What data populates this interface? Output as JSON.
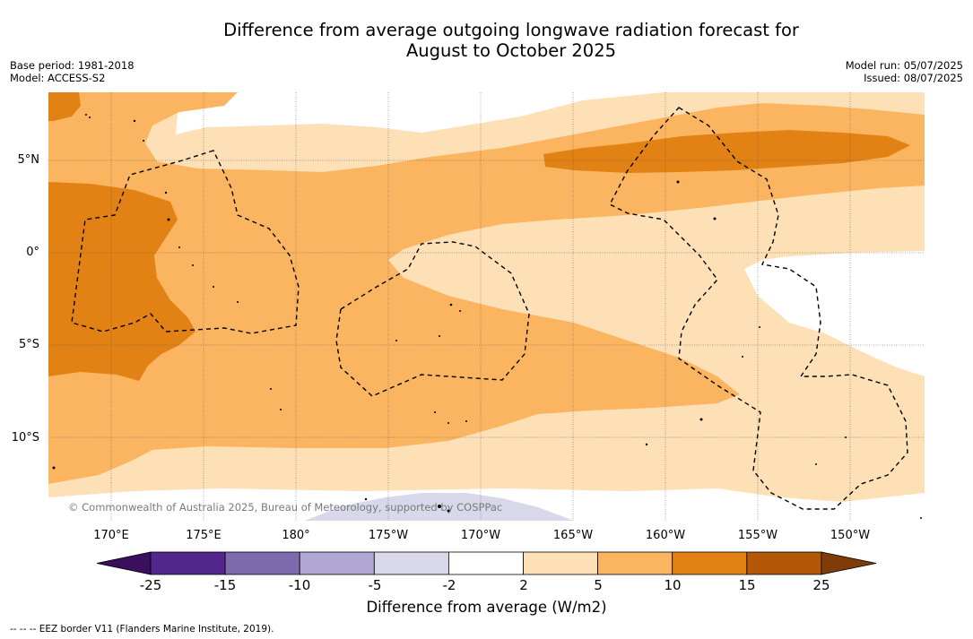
{
  "title_line1": "Difference from average outgoing longwave radiation forecast for",
  "title_line2": "August to October 2025",
  "base_period": "Base period: 1981-2018",
  "model": "Model: ACCESS-S2",
  "model_run": "Model run: 05/07/2025",
  "issued": "Issued: 08/07/2025",
  "latitudes": [
    "5°N",
    "0°",
    "5°S",
    "10°S"
  ],
  "longitudes": [
    "170°E",
    "175°E",
    "180°",
    "175°W",
    "170°W",
    "165°W",
    "160°W",
    "155°W",
    "150°W"
  ],
  "copyright": "© Commonwealth of Australia 2025, Bureau of Meteorology, supported by COSPPac",
  "colorbar": {
    "ticks": [
      "-25",
      "-15",
      "-10",
      "-5",
      "-2",
      "2",
      "5",
      "10",
      "15",
      "25"
    ],
    "colors": [
      "#3b0f5e",
      "#54278f",
      "#7d6bad",
      "#b0a8d2",
      "#d9d8ea",
      "#ffffff",
      "#fde0b6",
      "#fbb560",
      "#e28215",
      "#b35806",
      "#7f3b08"
    ],
    "label": "Difference from average (W/m2)"
  },
  "map_colors": {
    "band_2_5": "#fde0b6",
    "band_5_10": "#fbb560",
    "band_10_15": "#e28215",
    "band_neg": "#d9d8ea"
  },
  "footnote": "--  --  -- EEZ border V11 (Flanders Marine Institute, 2019)."
}
